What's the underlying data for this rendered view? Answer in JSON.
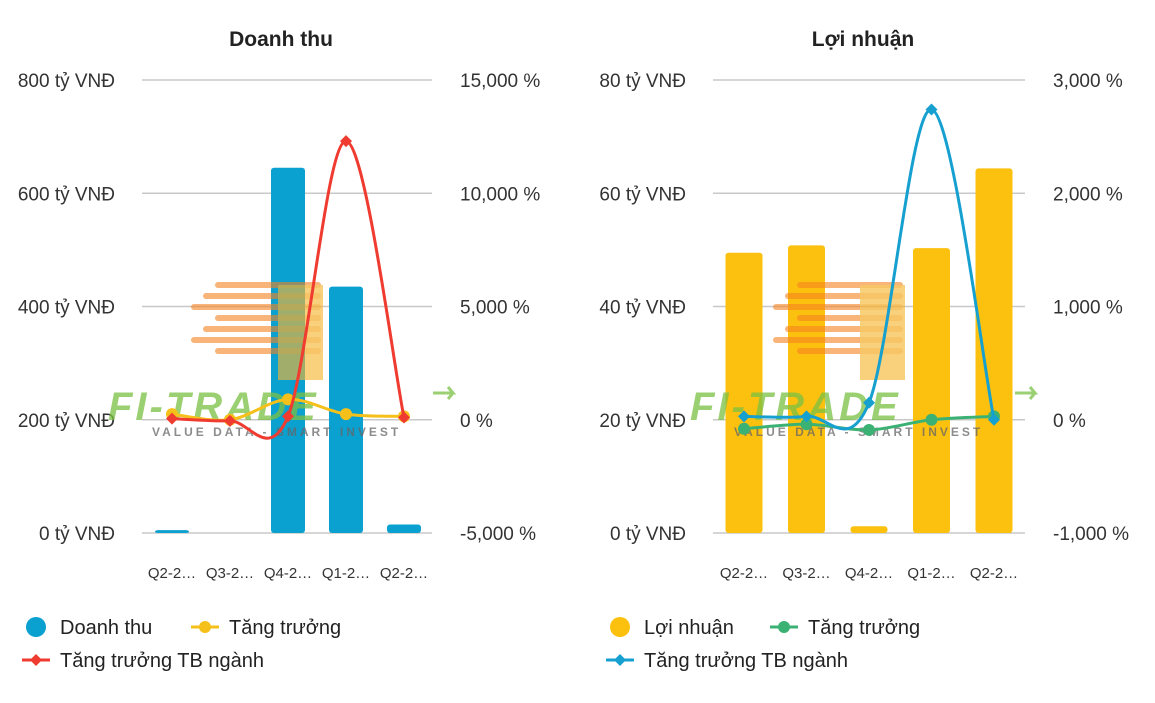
{
  "colors": {
    "revenue_bar": "#0aa0d0",
    "revenue_growth": "#f6c01a",
    "revenue_industry": "#ef3b30",
    "profit_bar": "#fcc10f",
    "profit_growth": "#3bb273",
    "profit_industry": "#16a0d0",
    "grid": "#c8c8c8",
    "watermark_green": "#7ac143",
    "watermark_orange": "#f58220"
  },
  "watermark": {
    "logo": "FI-TRADE",
    "tagline": "VALUE DATA - SMART INVEST"
  },
  "chart_data": [
    {
      "type": "bar",
      "title": "Doanh thu",
      "categories": [
        "Q2-2…",
        "Q3-2…",
        "Q4-2…",
        "Q1-2…",
        "Q2-2…"
      ],
      "y_left": {
        "min": 0,
        "max": 800,
        "ticks": [
          0,
          200,
          400,
          600,
          800
        ],
        "tick_labels": [
          "0 tỷ VNĐ",
          "200 tỷ VNĐ",
          "400 tỷ VNĐ",
          "600 tỷ VNĐ",
          "800 tỷ VNĐ"
        ]
      },
      "y_right": {
        "min": -5000,
        "max": 15000,
        "ticks": [
          -5000,
          0,
          5000,
          10000,
          15000
        ],
        "tick_labels": [
          "-5,000 %",
          "0 %",
          "5,000 %",
          "10,000 %",
          "15,000 %"
        ]
      },
      "grid": true,
      "legend_position": "bottom-left",
      "series": [
        {
          "name": "Doanh thu",
          "kind": "bar",
          "axis": "left",
          "color_key": "revenue_bar",
          "values": [
            5,
            0,
            645,
            435,
            15
          ]
        },
        {
          "name": "Tăng trưởng",
          "kind": "line",
          "axis": "right",
          "color_key": "revenue_growth",
          "marker": "circle",
          "values": [
            250,
            0,
            900,
            250,
            150
          ]
        },
        {
          "name": "Tăng trưởng TB ngành",
          "kind": "line",
          "axis": "right",
          "color_key": "revenue_industry",
          "marker": "diamond",
          "values": [
            50,
            -50,
            150,
            12300,
            100
          ]
        }
      ]
    },
    {
      "type": "bar",
      "title": "Lợi nhuận",
      "categories": [
        "Q2-2…",
        "Q3-2…",
        "Q4-2…",
        "Q1-2…",
        "Q2-2…"
      ],
      "y_left": {
        "min": 0,
        "max": 80,
        "ticks": [
          0,
          20,
          40,
          60,
          80
        ],
        "tick_labels": [
          "0 tỷ VNĐ",
          "20 tỷ VNĐ",
          "40 tỷ VNĐ",
          "60 tỷ VNĐ",
          "80 tỷ VNĐ"
        ]
      },
      "y_right": {
        "min": -1000,
        "max": 3000,
        "ticks": [
          -1000,
          0,
          1000,
          2000,
          3000
        ],
        "tick_labels": [
          "-1,000 %",
          "0 %",
          "1,000 %",
          "2,000 %",
          "3,000 %"
        ]
      },
      "grid": true,
      "legend_position": "bottom-left",
      "series": [
        {
          "name": "Lợi nhuận",
          "kind": "bar",
          "axis": "left",
          "color_key": "profit_bar",
          "values": [
            49.5,
            50.8,
            1.2,
            50.3,
            64.4
          ]
        },
        {
          "name": "Tăng trưởng",
          "kind": "line",
          "axis": "right",
          "color_key": "profit_growth",
          "marker": "circle",
          "values": [
            -80,
            -40,
            -90,
            0,
            30
          ]
        },
        {
          "name": "Tăng trưởng TB ngành",
          "kind": "line",
          "axis": "right",
          "color_key": "profit_industry",
          "marker": "diamond",
          "values": [
            30,
            30,
            150,
            2740,
            0
          ]
        }
      ]
    }
  ]
}
